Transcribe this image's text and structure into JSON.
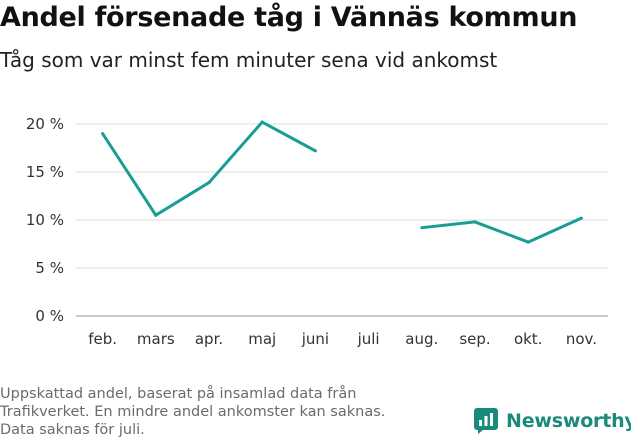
{
  "title": "Andel försenade tåg i Vännäs kommun",
  "subtitle": "Tåg som var minst fem minuter sena vid ankomst",
  "footnote": [
    "Uppskattad andel, baserat på insamlad data från",
    "Trafikverket. En mindre andel ankomster kan saknas.",
    "Data saknas för juli."
  ],
  "brand": {
    "name": "Newsworthy",
    "color": "#1a8a7d"
  },
  "chart_data": {
    "type": "line",
    "categories": [
      "feb.",
      "mars",
      "apr.",
      "maj",
      "juni",
      "juli",
      "aug.",
      "sep.",
      "okt.",
      "nov."
    ],
    "series": [
      {
        "values": [
          19.0,
          10.5,
          13.9,
          20.2,
          17.2,
          null,
          9.2,
          9.8,
          7.7,
          10.2
        ],
        "color": "#1a9e93"
      }
    ],
    "ylim": [
      0,
      20
    ],
    "yticks": [
      0,
      5,
      10,
      15,
      20
    ],
    "ytick_labels": [
      "0 %",
      "5 %",
      "10 %",
      "15 %",
      "20 %"
    ],
    "grid": true,
    "xlabel": "",
    "ylabel": ""
  }
}
